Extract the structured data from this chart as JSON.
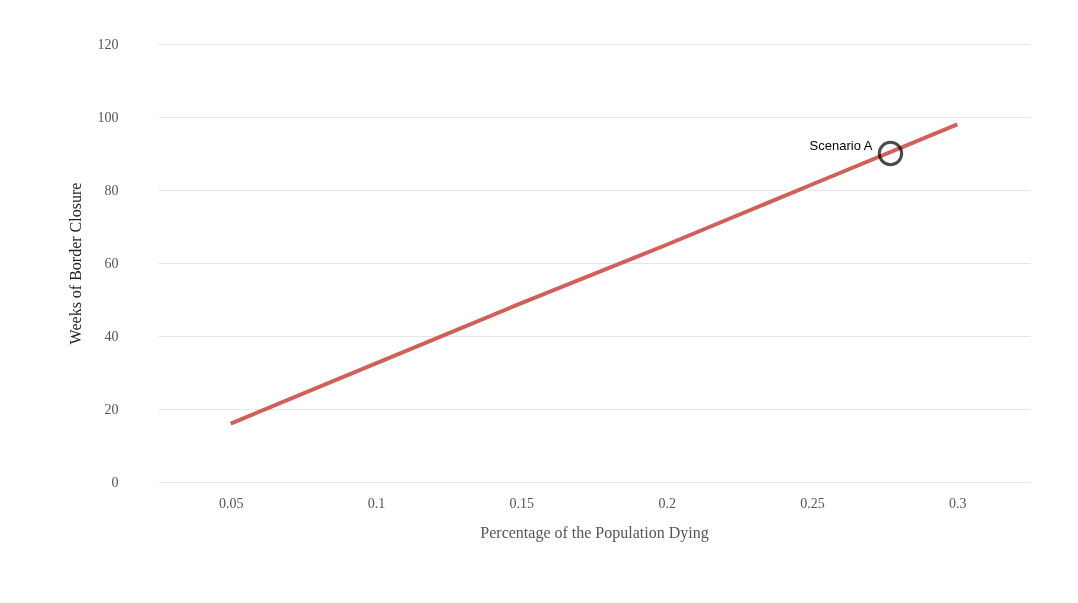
{
  "chart_data": {
    "type": "line",
    "xlabel": "Percentage of the Population Dying",
    "ylabel": "Weeks of Border Closure",
    "x": [
      0.05,
      0.1,
      0.15,
      0.2,
      0.25,
      0.3
    ],
    "series": [
      {
        "color": "#d0605a",
        "values": [
          16,
          32.5,
          49,
          65,
          81.5,
          98
        ]
      }
    ],
    "xlim": [
      0.025,
      0.325
    ],
    "xticks": [
      0.05,
      0.1,
      0.15,
      0.2,
      0.25,
      0.3
    ],
    "ylim": [
      0,
      120
    ],
    "yticks": [
      0,
      20,
      40,
      60,
      80,
      100,
      120
    ],
    "grid": "y",
    "marker": "none",
    "line_style": "solid",
    "annotations": [
      {
        "text": "Scenario A",
        "x": 0.277,
        "y": 90
      }
    ]
  }
}
